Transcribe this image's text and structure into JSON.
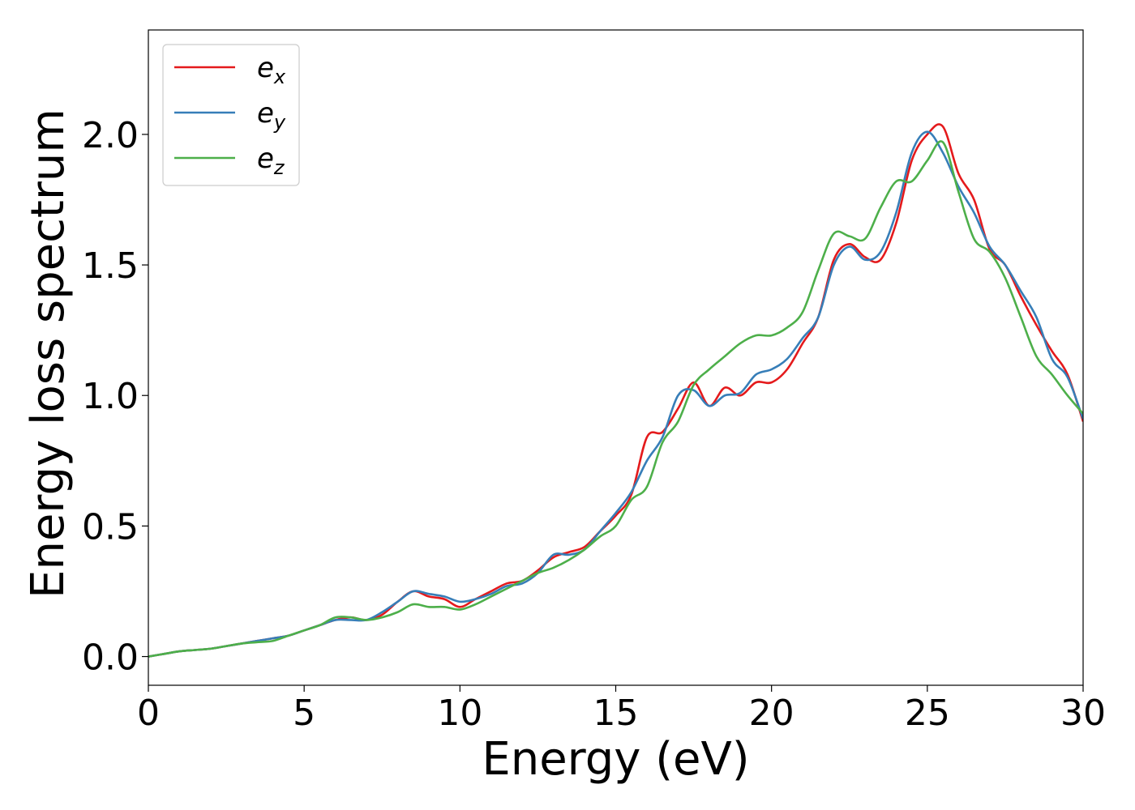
{
  "chart_data": {
    "type": "line",
    "xlabel": "Energy (eV)",
    "ylabel": "Energy loss spectrum",
    "xlim": [
      0,
      30
    ],
    "ylim": [
      -0.11,
      2.4
    ],
    "xticks": [
      0,
      5,
      10,
      15,
      20,
      25,
      30
    ],
    "xtick_labels": [
      "0",
      "5",
      "10",
      "15",
      "20",
      "25",
      "30"
    ],
    "yticks": [
      0,
      0.5,
      1,
      1.5,
      2
    ],
    "ytick_labels": [
      "0.0",
      "0.5",
      "1.0",
      "1.5",
      "2.0"
    ],
    "grid": false,
    "legend_position": "top-left",
    "x": [
      0,
      0.5,
      1,
      1.5,
      2,
      2.5,
      3,
      3.5,
      4,
      4.5,
      5,
      5.5,
      6,
      6.5,
      7,
      7.5,
      8,
      8.5,
      9,
      9.5,
      10,
      10.5,
      11,
      11.5,
      12,
      12.5,
      13,
      13.5,
      14,
      14.5,
      15,
      15.5,
      16,
      16.5,
      17,
      17.5,
      18,
      18.5,
      19,
      19.5,
      20,
      20.5,
      21,
      21.5,
      22,
      22.5,
      23,
      23.5,
      24,
      24.5,
      25,
      25.5,
      26,
      26.5,
      27,
      27.5,
      28,
      28.5,
      29,
      29.5,
      30
    ],
    "series": [
      {
        "name": "e",
        "subscript": "x",
        "color": "#e41a1c",
        "values": [
          0.0,
          0.01,
          0.02,
          0.025,
          0.03,
          0.04,
          0.05,
          0.06,
          0.07,
          0.08,
          0.1,
          0.12,
          0.14,
          0.15,
          0.14,
          0.16,
          0.21,
          0.25,
          0.23,
          0.22,
          0.19,
          0.22,
          0.25,
          0.28,
          0.29,
          0.33,
          0.38,
          0.4,
          0.42,
          0.48,
          0.54,
          0.62,
          0.84,
          0.86,
          0.95,
          1.05,
          0.96,
          1.03,
          1.0,
          1.05,
          1.05,
          1.1,
          1.2,
          1.3,
          1.52,
          1.58,
          1.53,
          1.52,
          1.66,
          1.9,
          2.0,
          2.03,
          1.85,
          1.75,
          1.56,
          1.5,
          1.38,
          1.27,
          1.17,
          1.08,
          0.9
        ]
      },
      {
        "name": "e",
        "subscript": "y",
        "color": "#377eb8",
        "values": [
          0.0,
          0.01,
          0.02,
          0.025,
          0.03,
          0.04,
          0.05,
          0.06,
          0.07,
          0.08,
          0.1,
          0.12,
          0.14,
          0.14,
          0.14,
          0.17,
          0.21,
          0.25,
          0.24,
          0.23,
          0.21,
          0.22,
          0.24,
          0.27,
          0.28,
          0.32,
          0.39,
          0.39,
          0.41,
          0.48,
          0.55,
          0.63,
          0.75,
          0.84,
          1.0,
          1.02,
          0.96,
          1.0,
          1.01,
          1.08,
          1.1,
          1.14,
          1.22,
          1.3,
          1.5,
          1.57,
          1.52,
          1.55,
          1.7,
          1.93,
          2.01,
          1.93,
          1.8,
          1.7,
          1.57,
          1.5,
          1.4,
          1.3,
          1.14,
          1.07,
          0.91
        ]
      },
      {
        "name": "e",
        "subscript": "z",
        "color": "#4daf4a",
        "values": [
          0.0,
          0.01,
          0.02,
          0.025,
          0.03,
          0.04,
          0.05,
          0.055,
          0.06,
          0.08,
          0.1,
          0.12,
          0.15,
          0.15,
          0.14,
          0.15,
          0.17,
          0.2,
          0.19,
          0.19,
          0.18,
          0.2,
          0.23,
          0.26,
          0.29,
          0.32,
          0.34,
          0.37,
          0.41,
          0.46,
          0.5,
          0.6,
          0.65,
          0.82,
          0.9,
          1.04,
          1.1,
          1.15,
          1.2,
          1.23,
          1.23,
          1.26,
          1.32,
          1.48,
          1.62,
          1.61,
          1.6,
          1.72,
          1.82,
          1.82,
          1.9,
          1.97,
          1.78,
          1.6,
          1.55,
          1.45,
          1.3,
          1.15,
          1.08,
          1.0,
          0.93
        ]
      }
    ]
  }
}
